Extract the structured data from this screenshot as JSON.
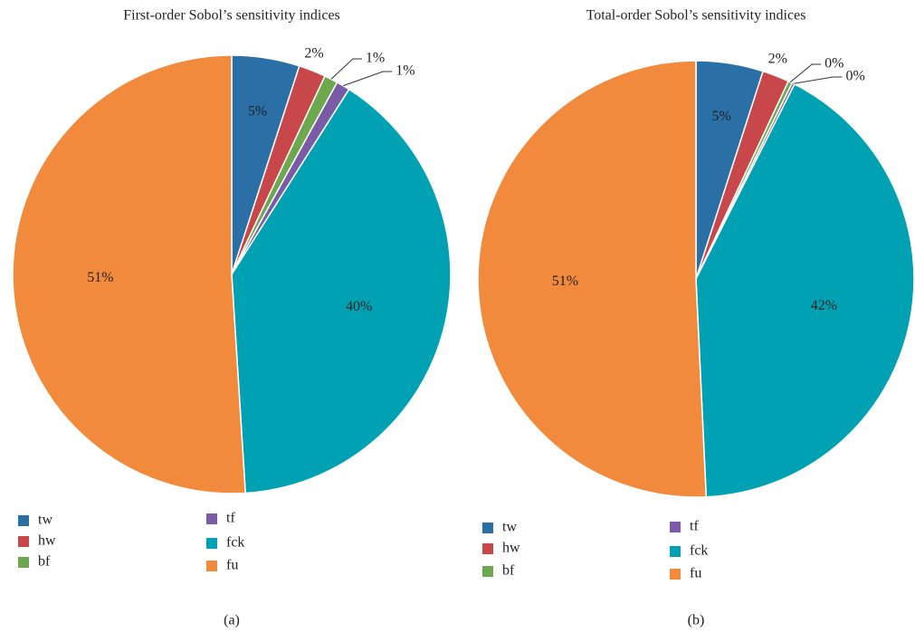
{
  "chart_data": [
    {
      "type": "pie",
      "title": "First-order Sobol’s sensitivity indices",
      "caption": "(a)",
      "categories": [
        "tw",
        "hw",
        "bf",
        "tf",
        "fck",
        "fu"
      ],
      "values": [
        5,
        2,
        1,
        1,
        40,
        51
      ],
      "value_labels": [
        "5%",
        "2%",
        "1%",
        "1%",
        "40%",
        "51%"
      ],
      "colors": [
        "#2a6fa6",
        "#c8474a",
        "#6ea84e",
        "#7a5ca6",
        "#00a1b3",
        "#f28a3d"
      ]
    },
    {
      "type": "pie",
      "title": "Total-order Sobol’s sensitivity indices",
      "caption": "(b)",
      "categories": [
        "tw",
        "hw",
        "bf",
        "tf",
        "fck",
        "fu"
      ],
      "values": [
        5,
        2,
        0.3,
        0.2,
        42,
        51
      ],
      "value_labels": [
        "5%",
        "2%",
        "0%",
        "0%",
        "42%",
        "51%"
      ],
      "colors": [
        "#2a6fa6",
        "#c8474a",
        "#6ea84e",
        "#7a5ca6",
        "#00a1b3",
        "#f28a3d"
      ]
    }
  ]
}
